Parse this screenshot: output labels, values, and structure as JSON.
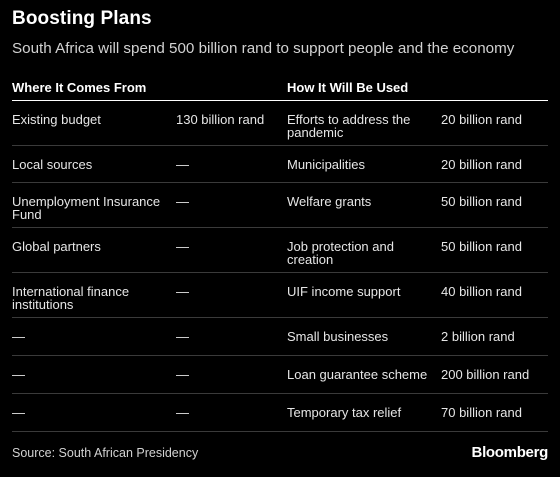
{
  "header": {
    "title": "Boosting Plans",
    "subtitle": "South Africa will spend 500 billion rand to support people and the economy"
  },
  "table": {
    "columns": [
      "Where It Comes From",
      "",
      "How It Will Be Used",
      ""
    ],
    "rows": [
      {
        "source": "Existing budget",
        "source_amount": "130 billion rand",
        "use": "Efforts to address the pandemic",
        "use_amount": "20 billion rand"
      },
      {
        "source": "Local sources",
        "source_amount": "—",
        "use": "Municipalities",
        "use_amount": "20 billion rand"
      },
      {
        "source": "Unemployment Insurance Fund",
        "source_amount": "—",
        "use": "Welfare grants",
        "use_amount": "50 billion rand"
      },
      {
        "source": "Global partners",
        "source_amount": "—",
        "use": "Job protection and creation",
        "use_amount": "50 billion rand"
      },
      {
        "source": "International finance institutions",
        "source_amount": "—",
        "use": "UIF income support",
        "use_amount": "40 billion rand"
      },
      {
        "source": "—",
        "source_amount": "—",
        "use": "Small businesses",
        "use_amount": "2 billion rand"
      },
      {
        "source": "—",
        "source_amount": "—",
        "use": "Loan guarantee scheme",
        "use_amount": "200 billion rand"
      },
      {
        "source": "—",
        "source_amount": "—",
        "use": "Temporary tax relief",
        "use_amount": "70 billion rand"
      }
    ]
  },
  "footer": {
    "source": "Source: South African Presidency",
    "brand": "Bloomberg"
  }
}
